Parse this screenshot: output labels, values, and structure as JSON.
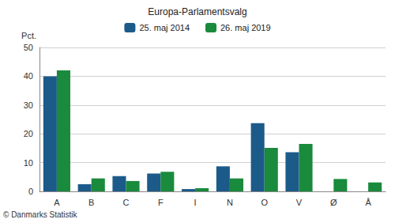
{
  "chart_data": {
    "type": "bar",
    "title": "Europa-Parlamentsvalg",
    "ylabel": "Pct.",
    "annotations": [
      "© Danmarks Statistik"
    ],
    "categories": [
      "A",
      "B",
      "C",
      "F",
      "I",
      "N",
      "O",
      "V",
      "Ø",
      "Å"
    ],
    "series": [
      {
        "name": "25. maj 2014",
        "color": "#1c5a8a",
        "values": [
          40,
          2.5,
          5.3,
          6.2,
          0.8,
          8.7,
          23.7,
          13.6,
          null,
          null
        ]
      },
      {
        "name": "26. maj 2019",
        "color": "#1a8a3c",
        "values": [
          42,
          4.5,
          3.6,
          6.8,
          1.1,
          4.5,
          15.1,
          16.5,
          4.3,
          3.1
        ]
      }
    ],
    "ylim": [
      0,
      50
    ],
    "yticks": [
      0,
      10,
      20,
      30,
      40,
      50
    ],
    "grid": true,
    "legend": "top"
  }
}
